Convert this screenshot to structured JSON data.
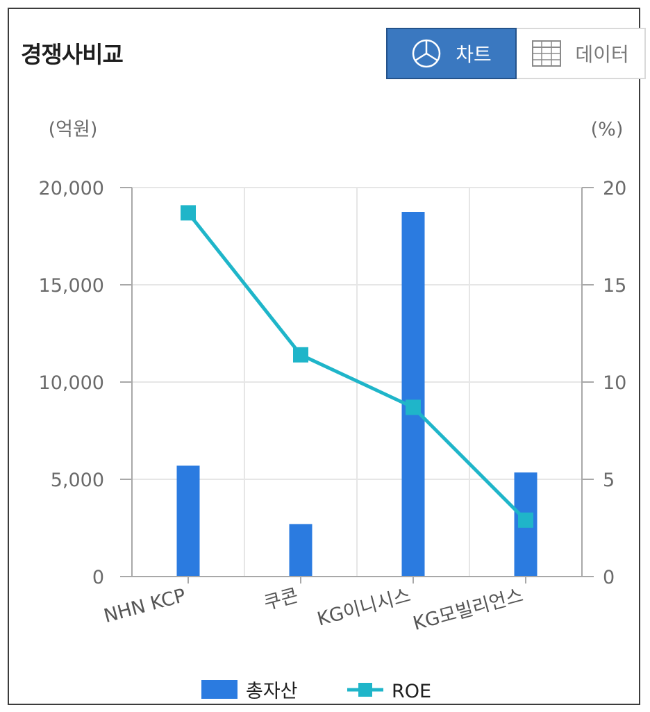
{
  "header": {
    "title": "경쟁사비교"
  },
  "view_toggle": {
    "chart_label": "차트",
    "chart_icon": "pie-chart-icon",
    "data_label": "데이터",
    "data_icon": "table-grid-icon",
    "active": "chart"
  },
  "colors": {
    "bar": "#2b7be0",
    "line": "#1fb5c9",
    "active_button": "#3a78c0"
  },
  "chart_data": {
    "type": "bar",
    "title": "",
    "categories": [
      "NHN KCP",
      "쿠콘",
      "KG이니시스",
      "KG모빌리언스"
    ],
    "series": [
      {
        "name": "총자산",
        "type": "bar",
        "axis": "left",
        "values": [
          5700,
          2700,
          18750,
          5350
        ]
      },
      {
        "name": "ROE",
        "type": "line",
        "axis": "right",
        "values": [
          18.7,
          11.4,
          8.7,
          2.9
        ]
      }
    ],
    "y_left": {
      "unit_label": "(억원)",
      "ylim": [
        0,
        20000
      ],
      "ticks": [
        0,
        5000,
        10000,
        15000,
        20000
      ],
      "tick_labels": [
        "0",
        "5,000",
        "10,000",
        "15,000",
        "20,000"
      ]
    },
    "y_right": {
      "unit_label": "(%)",
      "ylim": [
        0,
        20
      ],
      "ticks": [
        0,
        5,
        10,
        15,
        20
      ],
      "tick_labels": [
        "0",
        "5",
        "10",
        "15",
        "20"
      ]
    },
    "grid": true,
    "legend_position": "bottom-center"
  }
}
